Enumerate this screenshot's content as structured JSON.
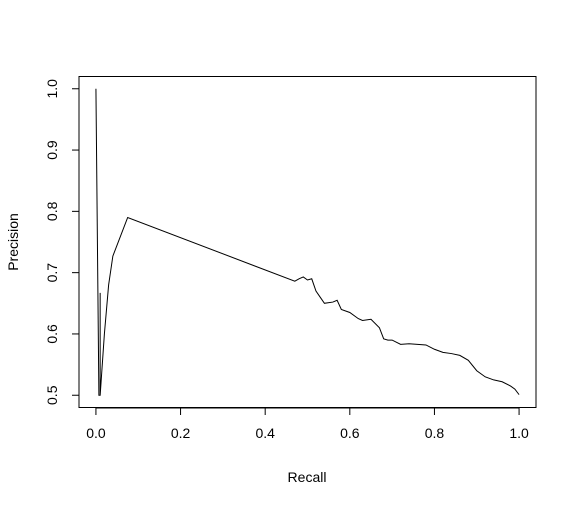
{
  "chart_data": {
    "type": "line",
    "title": "",
    "xlabel": "Recall",
    "ylabel": "Precision",
    "xlim": [
      -0.04,
      1.04
    ],
    "ylim": [
      0.48,
      1.02
    ],
    "xticks": [
      0.0,
      0.2,
      0.4,
      0.6,
      0.8,
      1.0
    ],
    "xtick_labels": [
      "0.0",
      "0.2",
      "0.4",
      "0.6",
      "0.8",
      "1.0"
    ],
    "yticks": [
      0.5,
      0.6,
      0.7,
      0.8,
      0.9,
      1.0
    ],
    "ytick_labels": [
      "0.5",
      "0.6",
      "0.7",
      "0.8",
      "0.9",
      "1.0"
    ],
    "grid": false,
    "legend": "none",
    "series": [
      {
        "color": "#000000",
        "x": [
          0.0,
          0.007,
          0.01,
          0.01,
          0.01,
          0.02,
          0.03,
          0.04,
          0.075,
          0.47,
          0.48,
          0.49,
          0.5,
          0.51,
          0.52,
          0.53,
          0.54,
          0.56,
          0.57,
          0.58,
          0.6,
          0.62,
          0.63,
          0.65,
          0.67,
          0.68,
          0.69,
          0.7,
          0.72,
          0.74,
          0.76,
          0.78,
          0.8,
          0.82,
          0.84,
          0.86,
          0.88,
          0.9,
          0.92,
          0.94,
          0.96,
          0.98,
          0.99,
          1.0
        ],
        "y": [
          1.0,
          0.5,
          0.5,
          0.667,
          0.5,
          0.6,
          0.68,
          0.727,
          0.79,
          0.686,
          0.69,
          0.693,
          0.688,
          0.69,
          0.67,
          0.66,
          0.65,
          0.652,
          0.655,
          0.64,
          0.635,
          0.625,
          0.622,
          0.624,
          0.61,
          0.592,
          0.59,
          0.59,
          0.583,
          0.584,
          0.583,
          0.582,
          0.575,
          0.57,
          0.568,
          0.565,
          0.557,
          0.54,
          0.53,
          0.525,
          0.522,
          0.515,
          0.51,
          0.501
        ]
      }
    ]
  }
}
